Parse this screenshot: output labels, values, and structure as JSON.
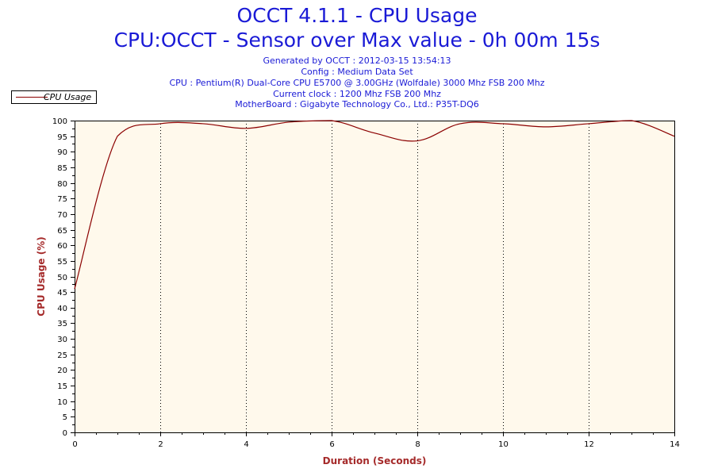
{
  "header": {
    "title_line1": "OCCT 4.1.1 - CPU Usage",
    "title_line2": "CPU:OCCT - Sensor over Max value - 0h 00m 15s",
    "info_lines": [
      "Generated by OCCT : 2012-03-15 13:54:13",
      "Config : Medium Data Set",
      "CPU : Pentium(R) Dual-Core CPU E5700 @ 3.00GHz (Wolfdale) 3000 Mhz FSB 200 Mhz",
      "Current clock : 1200 Mhz FSB 200 Mhz",
      "MotherBoard : Gigabyte Technology Co., Ltd.: P35T-DQ6"
    ]
  },
  "legend": {
    "label": "CPU Usage"
  },
  "colors": {
    "title": "#1a1ad6",
    "series_line": "#8b0000",
    "plot_background": "#fff9ec",
    "axis_title": "#a52a2a",
    "grid": "#000000"
  },
  "chart_data": {
    "type": "line",
    "title": "OCCT 4.1.1 - CPU Usage",
    "subtitle": "CPU:OCCT - Sensor over Max value - 0h 00m 15s",
    "xlabel": "Duration (Seconds)",
    "ylabel": "CPU Usage (%)",
    "xlim": [
      0,
      14
    ],
    "ylim": [
      0,
      100
    ],
    "x_ticks": [
      0,
      2,
      4,
      6,
      8,
      10,
      12,
      14
    ],
    "y_ticks": [
      0,
      5,
      10,
      15,
      20,
      25,
      30,
      35,
      40,
      45,
      50,
      55,
      60,
      65,
      70,
      75,
      80,
      85,
      90,
      95,
      100
    ],
    "grid": "vertical dotted at major x ticks",
    "legend_position": "top-left",
    "series": [
      {
        "name": "CPU Usage",
        "x": [
          0,
          1,
          2,
          3,
          4,
          5,
          6,
          7,
          8,
          9,
          10,
          11,
          12,
          13,
          14
        ],
        "y": [
          46,
          95,
          99,
          99,
          97.5,
          99.5,
          100,
          96,
          93.5,
          99,
          99,
          98,
          99,
          100,
          95
        ]
      }
    ]
  }
}
